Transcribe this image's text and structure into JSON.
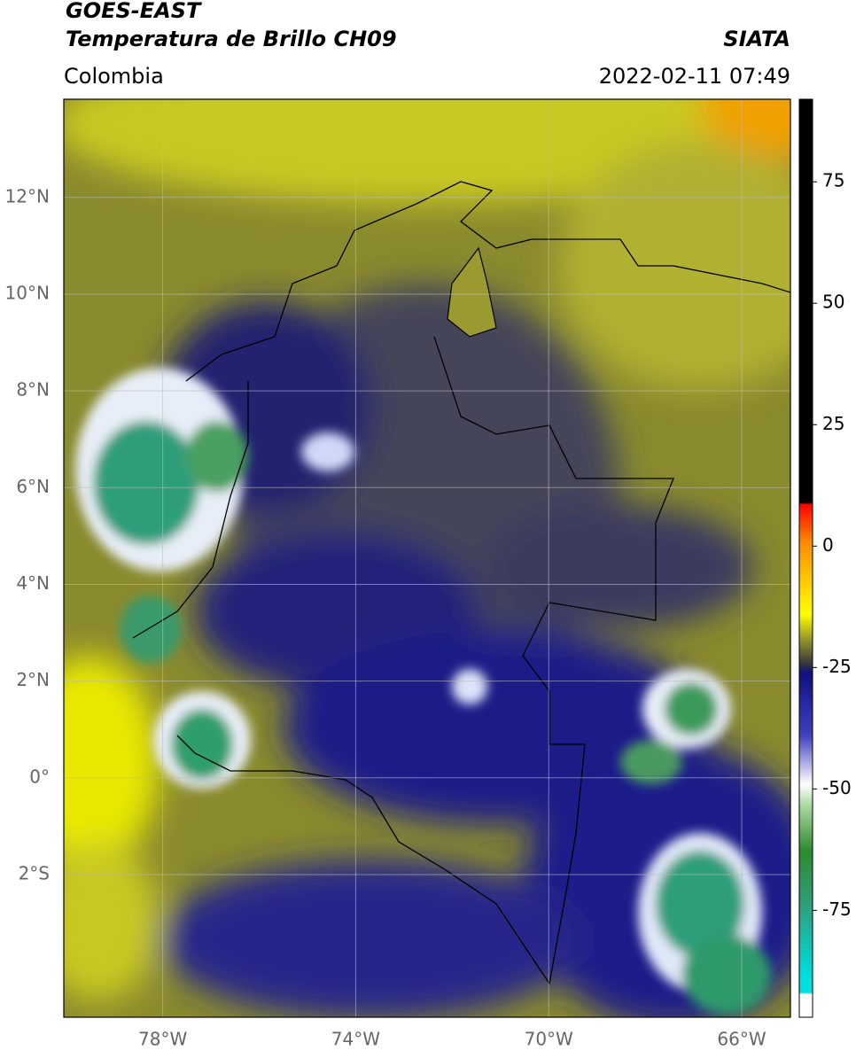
{
  "header": {
    "title": "GOES-EAST",
    "subtitle": "Temperatura de Brillo CH09",
    "source": "SIATA",
    "region": "Colombia",
    "datetime": "2022-02-11 07:49"
  },
  "map": {
    "latlim": [
      -4.95,
      14.03
    ],
    "lonlim": [
      -80.05,
      -64.99
    ],
    "latticks": [
      {
        "value": 12,
        "label": "12°N"
      },
      {
        "value": 10,
        "label": "10°N"
      },
      {
        "value": 8,
        "label": "8°N"
      },
      {
        "value": 6,
        "label": "6°N"
      },
      {
        "value": 4,
        "label": "4°N"
      },
      {
        "value": 2,
        "label": "2°N"
      },
      {
        "value": 0,
        "label": "0°"
      },
      {
        "value": -2,
        "label": "2°S"
      }
    ],
    "lonticks": [
      {
        "value": -78,
        "label": "78°W"
      },
      {
        "value": -74,
        "label": "74°W"
      },
      {
        "value": -70,
        "label": "70°W"
      },
      {
        "value": -66,
        "label": "66°W"
      }
    ]
  },
  "colorbar": {
    "lim": [
      -97,
      92
    ],
    "ticks": [
      75,
      50,
      25,
      0,
      -25,
      -50,
      -75
    ]
  }
}
